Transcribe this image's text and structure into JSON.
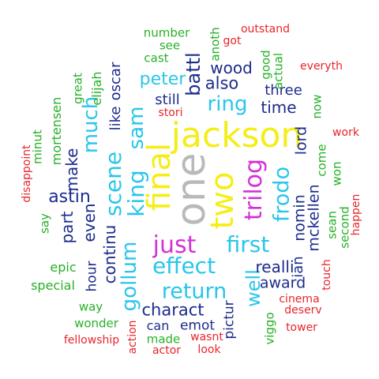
{
  "colors": {
    "red": "#e8252b",
    "green": "#27b027",
    "navy": "#1c2c8c",
    "sky": "#29c6ea",
    "magenta": "#d431d6",
    "yellow": "#f4ee18",
    "gray": "#b9b9b9"
  },
  "words": [
    {
      "text": "jackson",
      "color": "yellow"
    },
    {
      "text": "one",
      "color": "gray"
    },
    {
      "text": "final",
      "color": "yellow"
    },
    {
      "text": "two",
      "color": "yellow"
    },
    {
      "text": "just",
      "color": "magenta"
    },
    {
      "text": "trilog",
      "color": "magenta"
    },
    {
      "text": "scene",
      "color": "sky"
    },
    {
      "text": "king",
      "color": "sky"
    },
    {
      "text": "sam",
      "color": "sky"
    },
    {
      "text": "gollum",
      "color": "sky"
    },
    {
      "text": "effect",
      "color": "sky"
    },
    {
      "text": "first",
      "color": "sky"
    },
    {
      "text": "return",
      "color": "sky"
    },
    {
      "text": "frodo",
      "color": "sky"
    },
    {
      "text": "ring",
      "color": "sky"
    },
    {
      "text": "much",
      "color": "sky"
    },
    {
      "text": "peter",
      "color": "sky"
    },
    {
      "text": "well",
      "color": "sky"
    },
    {
      "text": "charact",
      "color": "navy"
    },
    {
      "text": "battl",
      "color": "navy"
    },
    {
      "text": "wood",
      "color": "navy"
    },
    {
      "text": "also",
      "color": "navy"
    },
    {
      "text": "time",
      "color": "navy"
    },
    {
      "text": "three",
      "color": "navy"
    },
    {
      "text": "still",
      "color": "navy"
    },
    {
      "text": "astin",
      "color": "navy"
    },
    {
      "text": "make",
      "color": "navy"
    },
    {
      "text": "part",
      "color": "navy"
    },
    {
      "text": "even",
      "color": "navy"
    },
    {
      "text": "continu",
      "color": "navy"
    },
    {
      "text": "realli",
      "color": "navy"
    },
    {
      "text": "award",
      "color": "navy"
    },
    {
      "text": "nomin",
      "color": "navy"
    },
    {
      "text": "lord",
      "color": "navy"
    },
    {
      "text": "mckellen",
      "color": "navy"
    },
    {
      "text": "ian",
      "color": "navy"
    },
    {
      "text": "oscar",
      "color": "navy"
    },
    {
      "text": "like",
      "color": "navy"
    },
    {
      "text": "hour",
      "color": "navy"
    },
    {
      "text": "emot",
      "color": "navy"
    },
    {
      "text": "can",
      "color": "navy"
    },
    {
      "text": "pictur",
      "color": "navy"
    },
    {
      "text": "elijah",
      "color": "green"
    },
    {
      "text": "great",
      "color": "green"
    },
    {
      "text": "mortensen",
      "color": "green"
    },
    {
      "text": "minut",
      "color": "green"
    },
    {
      "text": "say",
      "color": "green"
    },
    {
      "text": "epic",
      "color": "green"
    },
    {
      "text": "special",
      "color": "green"
    },
    {
      "text": "way",
      "color": "green"
    },
    {
      "text": "wonder",
      "color": "green"
    },
    {
      "text": "made",
      "color": "green"
    },
    {
      "text": "number",
      "color": "green"
    },
    {
      "text": "see",
      "color": "green"
    },
    {
      "text": "cast",
      "color": "green"
    },
    {
      "text": "anoth",
      "color": "green"
    },
    {
      "text": "good",
      "color": "green"
    },
    {
      "text": "actual",
      "color": "green"
    },
    {
      "text": "now",
      "color": "green"
    },
    {
      "text": "come",
      "color": "green"
    },
    {
      "text": "won",
      "color": "green"
    },
    {
      "text": "sean",
      "color": "green"
    },
    {
      "text": "second",
      "color": "green"
    },
    {
      "text": "viggo",
      "color": "green"
    },
    {
      "text": "outstand",
      "color": "red"
    },
    {
      "text": "got",
      "color": "red"
    },
    {
      "text": "everyth",
      "color": "red"
    },
    {
      "text": "stori",
      "color": "red"
    },
    {
      "text": "work",
      "color": "red"
    },
    {
      "text": "disappoint",
      "color": "red"
    },
    {
      "text": "happen",
      "color": "red"
    },
    {
      "text": "touch",
      "color": "red"
    },
    {
      "text": "cinema",
      "color": "red"
    },
    {
      "text": "deserv",
      "color": "red"
    },
    {
      "text": "tower",
      "color": "red"
    },
    {
      "text": "fellowship",
      "color": "red"
    },
    {
      "text": "action",
      "color": "red"
    },
    {
      "text": "wasnt",
      "color": "red"
    },
    {
      "text": "actor",
      "color": "red"
    },
    {
      "text": "look",
      "color": "red"
    }
  ]
}
